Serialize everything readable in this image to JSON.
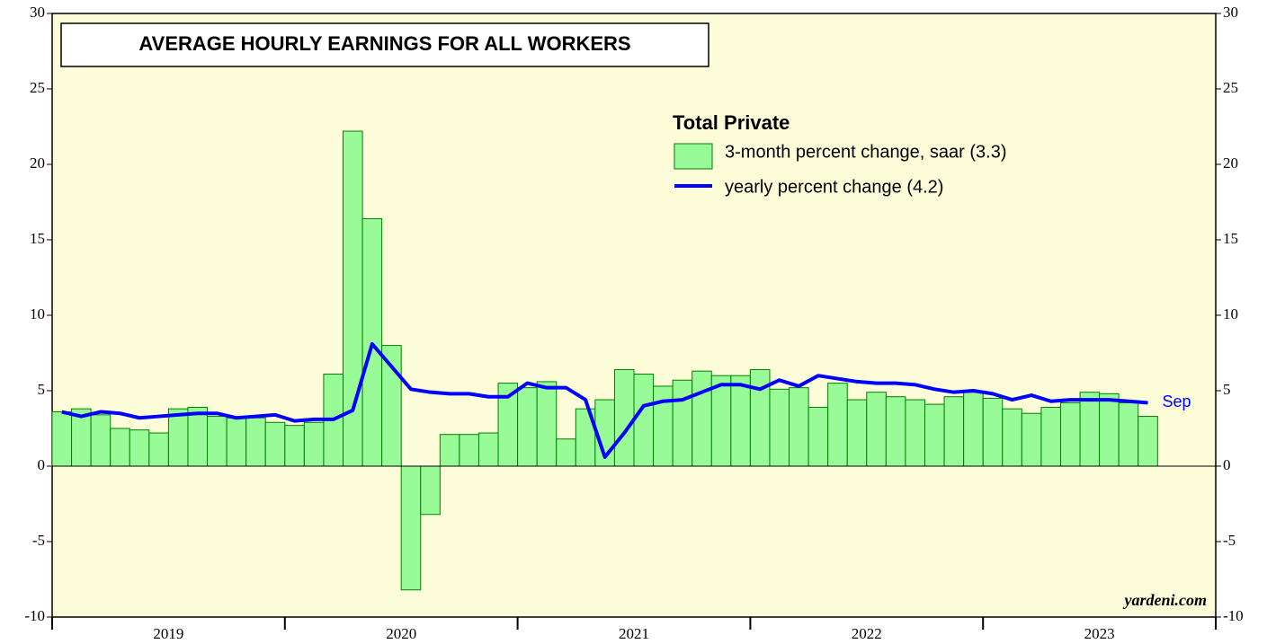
{
  "chart_data": {
    "type": "bar-line",
    "title": "AVERAGE HOURLY EARNINGS FOR ALL WORKERS",
    "legend_title": "Total Private",
    "annotation": "Sep",
    "source": "yardeni.com",
    "year_labels": [
      "2019",
      "2020",
      "2021",
      "2022",
      "2023"
    ],
    "ylim": [
      -10,
      30
    ],
    "yticks": [
      -10,
      -5,
      0,
      5,
      10,
      15,
      20,
      25,
      30
    ],
    "y2lim": [
      -10,
      30
    ],
    "y2ticks": [
      -10,
      -5,
      0,
      5,
      10,
      15,
      20,
      25,
      30
    ],
    "series": [
      {
        "name": "3-month percent change, saar (3.3)",
        "type": "bar",
        "color": "#98fb98",
        "edge_color": "#008000",
        "values": [
          3.6,
          3.8,
          3.4,
          2.5,
          2.4,
          2.2,
          3.8,
          3.9,
          3.3,
          3.2,
          3.2,
          2.9,
          2.7,
          2.9,
          6.1,
          22.2,
          16.4,
          8.0,
          -8.2,
          -3.2,
          2.1,
          2.1,
          2.2,
          5.5,
          5.2,
          5.6,
          1.8,
          3.8,
          4.4,
          6.4,
          6.1,
          5.3,
          5.7,
          6.3,
          6.0,
          6.0,
          6.4,
          5.1,
          5.2,
          3.9,
          5.5,
          4.4,
          4.9,
          4.6,
          4.4,
          4.1,
          4.6,
          4.9,
          4.5,
          3.8,
          3.5,
          3.9,
          4.2,
          4.9,
          4.8,
          4.2,
          3.3
        ]
      },
      {
        "name": "yearly percent change (4.2)",
        "type": "line",
        "color": "#0000ff",
        "values": [
          3.6,
          3.3,
          3.6,
          3.5,
          3.2,
          3.3,
          3.4,
          3.5,
          3.5,
          3.2,
          3.3,
          3.4,
          3.0,
          3.1,
          3.1,
          3.7,
          8.1,
          6.6,
          5.1,
          4.9,
          4.8,
          4.8,
          4.6,
          4.6,
          5.5,
          5.2,
          5.2,
          4.4,
          0.6,
          2.2,
          4.0,
          4.3,
          4.4,
          4.9,
          5.4,
          5.4,
          5.1,
          5.7,
          5.3,
          6.0,
          5.8,
          5.6,
          5.5,
          5.5,
          5.4,
          5.1,
          4.9,
          5.0,
          4.8,
          4.4,
          4.7,
          4.3,
          4.4,
          4.4,
          4.4,
          4.3,
          4.2
        ]
      }
    ]
  }
}
